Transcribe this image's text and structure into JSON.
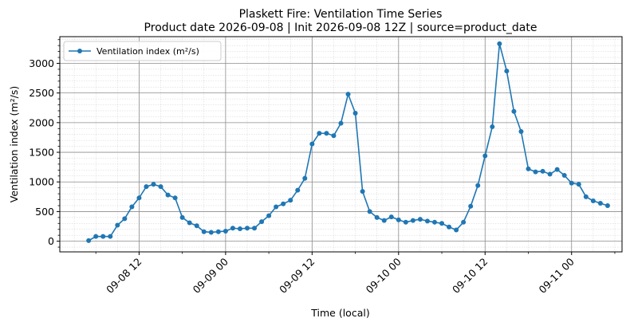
{
  "chart_data": {
    "type": "line",
    "title": "Plaskett Fire: Ventilation Time Series",
    "subtitle": "Product date 2026-09-08 | Init 2026-09-08 12Z | source=product_date",
    "xlabel": "Time (local)",
    "ylabel": "Ventilation index (m²/s)",
    "x_start": "2026-09-08 05:00",
    "x_step_hours": 1,
    "xlim": [
      "2026-09-08 01:00",
      "2026-09-11 07:00"
    ],
    "ylim": [
      -180,
      3450
    ],
    "x_ticks": [
      {
        "label": "09-08 12",
        "value": "2026-09-08 12:00"
      },
      {
        "label": "09-09 00",
        "value": "2026-09-09 00:00"
      },
      {
        "label": "09-09 12",
        "value": "2026-09-09 12:00"
      },
      {
        "label": "09-10 00",
        "value": "2026-09-10 00:00"
      },
      {
        "label": "09-10 12",
        "value": "2026-09-10 12:00"
      },
      {
        "label": "09-11 00",
        "value": "2026-09-11 00:00"
      }
    ],
    "y_ticks": [
      "0",
      "500",
      "1000",
      "1500",
      "2000",
      "2500",
      "3000"
    ],
    "grid": true,
    "minor_grid": true,
    "legend_position": "upper-left",
    "series": [
      {
        "name": "Ventilation index (m²/s)",
        "color": "#1f77b4",
        "marker": "circle",
        "values": [
          10,
          80,
          80,
          80,
          270,
          380,
          580,
          730,
          920,
          960,
          920,
          780,
          730,
          400,
          310,
          260,
          160,
          150,
          160,
          170,
          220,
          210,
          220,
          220,
          330,
          430,
          580,
          630,
          690,
          860,
          1060,
          1640,
          1820,
          1820,
          1780,
          1990,
          2480,
          2160,
          840,
          500,
          400,
          350,
          410,
          360,
          320,
          350,
          370,
          340,
          320,
          300,
          240,
          190,
          320,
          590,
          940,
          1440,
          1930,
          3330,
          2870,
          2190,
          1850,
          1220,
          1170,
          1180,
          1130,
          1210,
          1110,
          980,
          960,
          750,
          680,
          640,
          600
        ]
      }
    ]
  }
}
